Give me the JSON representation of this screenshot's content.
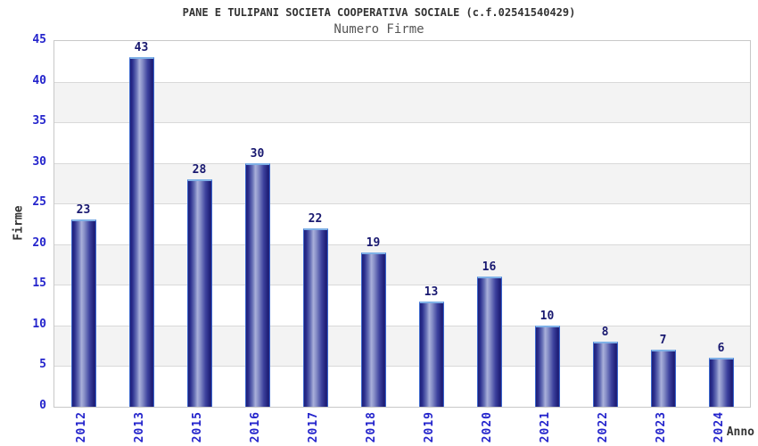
{
  "chart_data": {
    "type": "bar",
    "title": "PANE E TULIPANI SOCIETA COOPERATIVA SOCIALE (c.f.02541540429)",
    "subtitle": "Numero Firme",
    "xlabel": "Anno",
    "ylabel": "Firme",
    "categories": [
      "2012",
      "2013",
      "2015",
      "2016",
      "2017",
      "2018",
      "2019",
      "2020",
      "2021",
      "2022",
      "2023",
      "2024"
    ],
    "values": [
      23,
      43,
      28,
      30,
      22,
      19,
      13,
      16,
      10,
      8,
      7,
      6
    ],
    "ylim": [
      0,
      45
    ],
    "ytick_step": 5,
    "grid": true,
    "legend_position": "none",
    "band_pattern": "alternating white/gray horizontal bands of 5 units, white at top",
    "colors": {
      "tick_label": "#2424cc",
      "value_label": "#191970",
      "bar_dark": "#1f1f78",
      "bar_light": "#a9b0da",
      "bar_border": "#3a66cc",
      "bar_border_top": "#7fb0e6",
      "band_gray": "#f3f3f3",
      "gridline": "#d9d9d9",
      "plot_border": "#c8c8c8",
      "title_color": "#333333",
      "subtitle_color": "#555555"
    }
  }
}
